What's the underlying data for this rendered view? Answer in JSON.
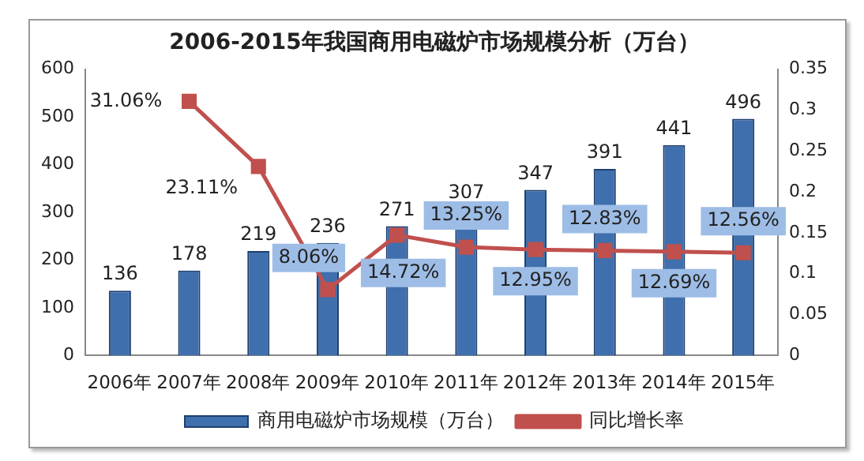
{
  "chart_data": {
    "type": "bar",
    "title": "2006-2015年我国商用电磁炉市场规模分析（万台）",
    "categories": [
      "2006年",
      "2007年",
      "2008年",
      "2009年",
      "2010年",
      "2011年",
      "2012年",
      "2013年",
      "2014年",
      "2015年"
    ],
    "series": [
      {
        "name": "商用电磁炉市场规模（万台）",
        "color": "#3f6fad",
        "values": [
          136,
          178,
          219,
          236,
          271,
          307,
          347,
          391,
          441,
          496
        ],
        "value_labels": [
          "136",
          "178",
          "219",
          "236",
          "271",
          "307",
          "347",
          "391",
          "441",
          "496"
        ]
      },
      {
        "name": "同比增长率",
        "type": "line",
        "axis": "y2",
        "color": "#c0504d",
        "marker": "square",
        "values": [
          null,
          0.3106,
          0.2311,
          0.0806,
          0.1472,
          0.1325,
          0.1295,
          0.1283,
          0.1269,
          0.1256
        ],
        "value_labels": [
          null,
          "31.06%",
          "23.11%",
          "8.06%",
          "14.72%",
          "13.25%",
          "12.95%",
          "12.83%",
          "12.69%",
          "12.56%"
        ]
      }
    ],
    "ylim": [
      0,
      600
    ],
    "yticks": [
      0,
      100,
      200,
      300,
      400,
      500,
      600
    ],
    "y2lim": [
      0,
      0.35
    ],
    "y2ticks": [
      0,
      0.05,
      0.1,
      0.15,
      0.2,
      0.25,
      0.3,
      0.35
    ],
    "grid": false,
    "legend": "bottom"
  }
}
